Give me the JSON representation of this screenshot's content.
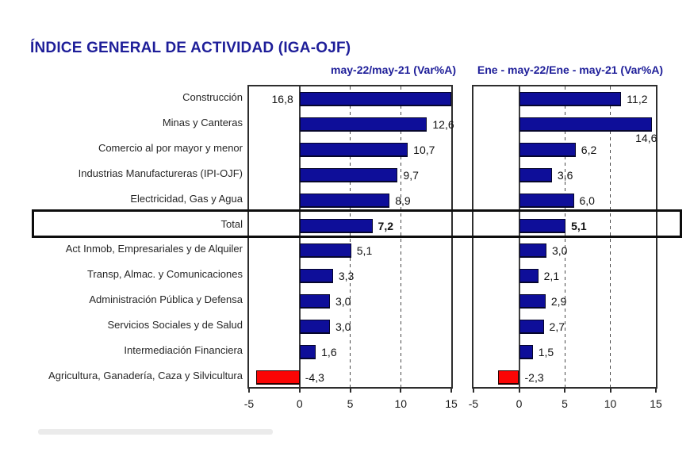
{
  "title": "ÍNDICE GENERAL DE ACTIVIDAD (IGA-OJF)",
  "colors": {
    "title_navy": "#1e1e99",
    "bar_navy": "#0E0E99",
    "bar_navy_border": "#06062b",
    "bar_red": "#FB0505",
    "bar_red_border": "#2b0000",
    "axis": "#2e2e2e"
  },
  "chart_data": {
    "type": "bar",
    "orientation": "horizontal",
    "title": "ÍNDICE GENERAL DE ACTIVIDAD (IGA-OJF)",
    "categories": [
      "Construcción",
      "Minas y Canteras",
      "Comercio al por mayor y menor",
      "Industrias Manufactureras (IPI-OJF)",
      "Electricidad, Gas y Agua",
      "Total",
      "Act Inmob, Empresariales y de Alquiler",
      "Transp, Almac. y Comunicaciones",
      "Administración Pública y Defensa",
      "Servicios Sociales y de Salud",
      "Intermediación Financiera",
      "Agricultura, Ganadería, Caza y Silvicultura"
    ],
    "series": [
      {
        "name": "may-22/may-21  (Var%A)",
        "values": [
          16.8,
          12.6,
          10.7,
          9.7,
          8.9,
          7.2,
          5.1,
          3.3,
          3.0,
          3.0,
          1.6,
          -4.3
        ]
      },
      {
        "name": "Ene - may-22/Ene - may-21  (Var%A)",
        "values": [
          11.2,
          14.6,
          6.2,
          3.6,
          6.0,
          5.1,
          3.0,
          2.1,
          2.9,
          2.7,
          1.5,
          -2.3
        ]
      }
    ],
    "xlim": [
      -5,
      15
    ],
    "xticks": [
      -5,
      0,
      5,
      10,
      15
    ],
    "gridlines_dashed": [
      5,
      10
    ],
    "zero_line": true,
    "highlight_category": "Total",
    "decimal_separator": ",",
    "grid": true,
    "legend_position": "none"
  }
}
